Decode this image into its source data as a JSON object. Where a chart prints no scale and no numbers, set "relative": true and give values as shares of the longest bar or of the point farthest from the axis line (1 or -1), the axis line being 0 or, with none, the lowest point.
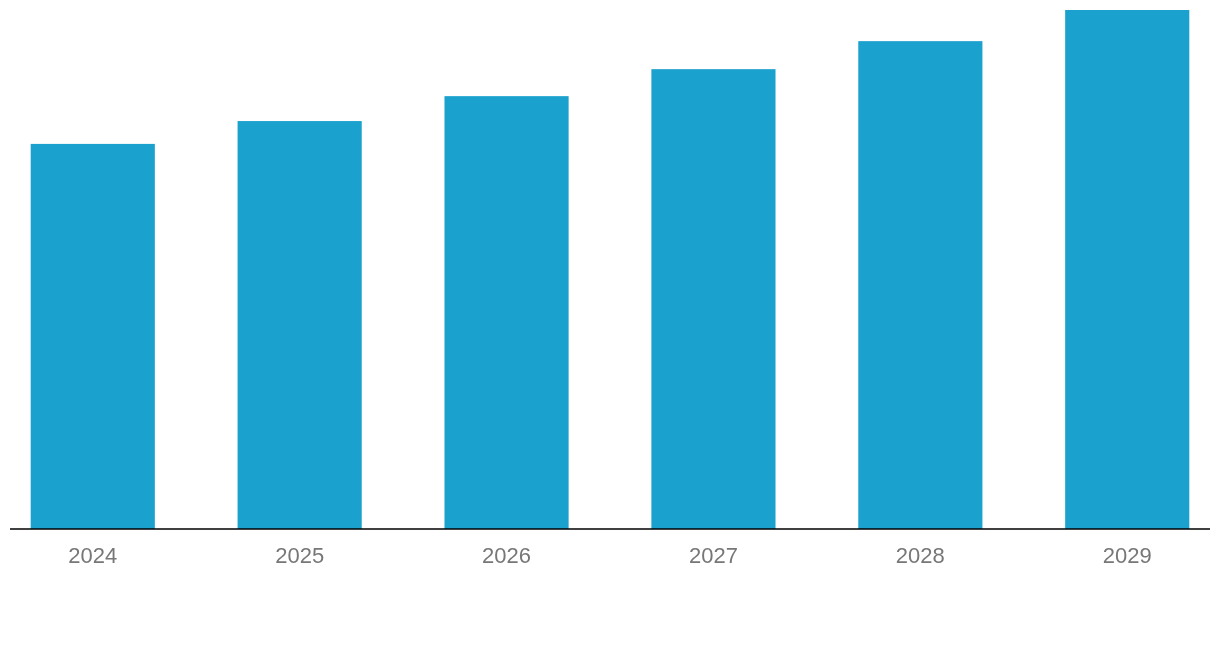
{
  "chart_data": {
    "type": "bar",
    "relative": true,
    "categories": [
      "2024",
      "2025",
      "2026",
      "2027",
      "2028",
      "2029"
    ],
    "values": [
      0.742,
      0.786,
      0.834,
      0.886,
      0.94,
      1
    ],
    "color": "#1aa1ce"
  }
}
